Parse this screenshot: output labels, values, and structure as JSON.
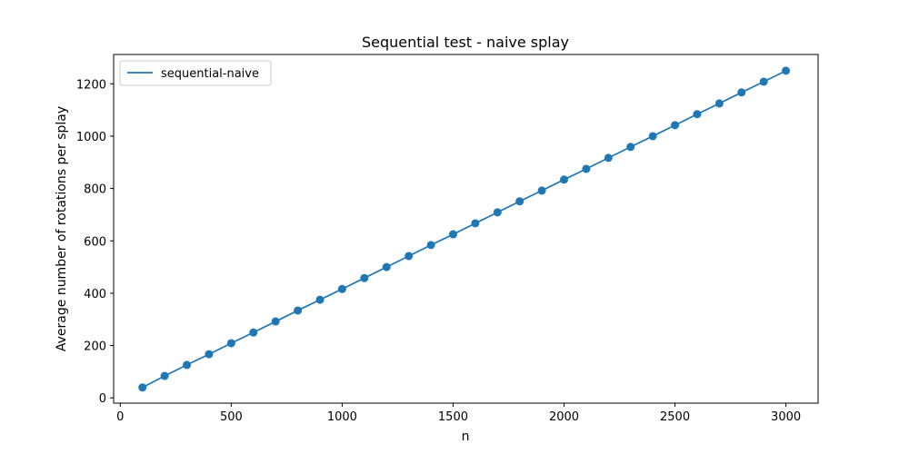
{
  "chart_data": {
    "type": "line",
    "title": "Sequential test - naive splay",
    "xlabel": "n",
    "ylabel": "Average number of rotations per splay",
    "xlim": [
      -30,
      3145
    ],
    "ylim": [
      -20,
      1312
    ],
    "xticks": [
      0,
      500,
      1000,
      1500,
      2000,
      2500,
      3000
    ],
    "yticks": [
      0,
      200,
      400,
      600,
      800,
      1000,
      1200
    ],
    "grid": false,
    "legend_position": "top-left",
    "series": [
      {
        "name": "sequential-naive",
        "color": "#1f77b4",
        "marker": "circle",
        "x": [
          100,
          200,
          300,
          400,
          500,
          600,
          700,
          800,
          900,
          1000,
          1100,
          1200,
          1300,
          1400,
          1500,
          1600,
          1700,
          1800,
          1900,
          2000,
          2100,
          2200,
          2300,
          2400,
          2500,
          2600,
          2700,
          2800,
          2900,
          3000
        ],
        "y": [
          40,
          84,
          126,
          167,
          209,
          250,
          292,
          334,
          375,
          416,
          458,
          500,
          542,
          584,
          625,
          667,
          709,
          751,
          792,
          834,
          875,
          917,
          959,
          1000,
          1042,
          1084,
          1125,
          1167,
          1208,
          1250
        ]
      }
    ]
  }
}
